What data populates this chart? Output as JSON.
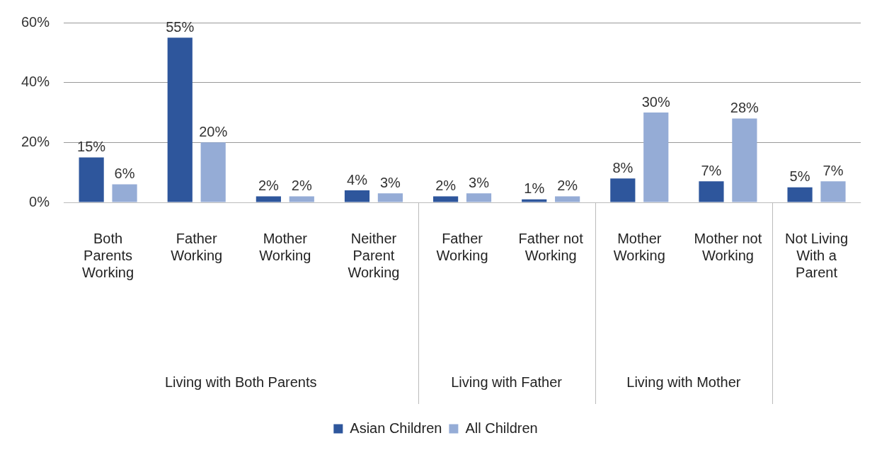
{
  "chart_data": {
    "type": "bar",
    "categories": [
      "Both Parents Working",
      "Father Working",
      "Mother Working",
      "Neither Parent Working",
      "Father Working",
      "Father not Working",
      "Mother Working",
      "Mother not Working",
      "Not Living With a Parent"
    ],
    "series": [
      {
        "name": "Asian Children",
        "color": "#2e569c",
        "values": [
          15,
          55,
          2,
          4,
          2,
          1,
          8,
          7,
          5
        ],
        "value_labels": [
          "15%",
          "55%",
          "2%",
          "4%",
          "2%",
          "1%",
          "8%",
          "7%",
          "5%"
        ]
      },
      {
        "name": "All Children",
        "color": "#95acd6",
        "values": [
          6,
          20,
          2,
          3,
          3,
          2,
          30,
          28,
          7
        ],
        "value_labels": [
          "6%",
          "20%",
          "2%",
          "3%",
          "3%",
          "2%",
          "30%",
          "28%",
          "7%"
        ]
      }
    ],
    "ylim": [
      0,
      60
    ],
    "yticks": [
      {
        "value": 0,
        "label": "0%"
      },
      {
        "value": 20,
        "label": "20%"
      },
      {
        "value": 40,
        "label": "40%"
      },
      {
        "value": 60,
        "label": "60%"
      }
    ],
    "grid": "y",
    "legend": "bottom",
    "annotations": [
      "Living with Both Parents",
      "Living with Father",
      "Living with Mother"
    ]
  }
}
